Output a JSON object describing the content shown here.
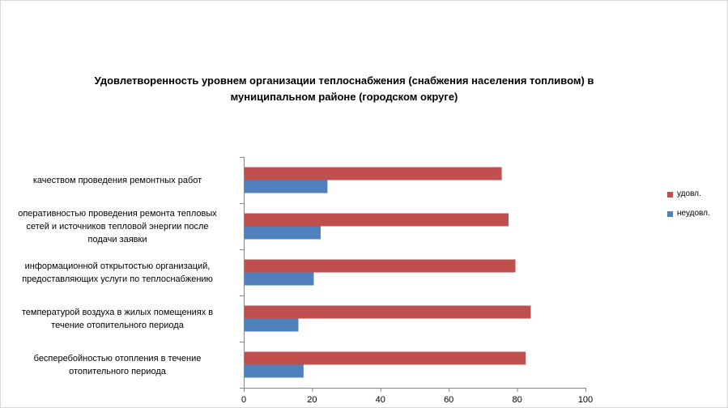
{
  "chart_data": {
    "type": "bar",
    "orientation": "horizontal",
    "title_lines": [
      "Удовлетворенность уровнем организации теплоснабжения (снабжения населения топливом) в",
      "муниципальном районе (городском округе)"
    ],
    "categories": [
      [
        "качеством проведения ремонтных работ"
      ],
      [
        "оперативностью проведения ремонта тепловых",
        "сетей и источников тепловой энергии после",
        "подачи заявки"
      ],
      [
        "информационной открытостью организаций,",
        "предоставляющих услуги по теплоснабжению"
      ],
      [
        "температурой воздуха в жилых помещениях в",
        "течение отопительного периода"
      ],
      [
        "бесперебойностью отопления в течение",
        "отопительного периода"
      ]
    ],
    "series": [
      {
        "name": "удовл.",
        "color": "#c0504d",
        "values": [
          75.5,
          77.5,
          79.5,
          84,
          82.5
        ]
      },
      {
        "name": "неудовл.",
        "color": "#4f81bd",
        "values": [
          24.5,
          22.5,
          20.5,
          16,
          17.5
        ]
      }
    ],
    "xlim": [
      0,
      100
    ],
    "xticks": [
      0,
      20,
      40,
      60,
      80,
      100
    ],
    "grid": false,
    "legend_position": "right"
  }
}
